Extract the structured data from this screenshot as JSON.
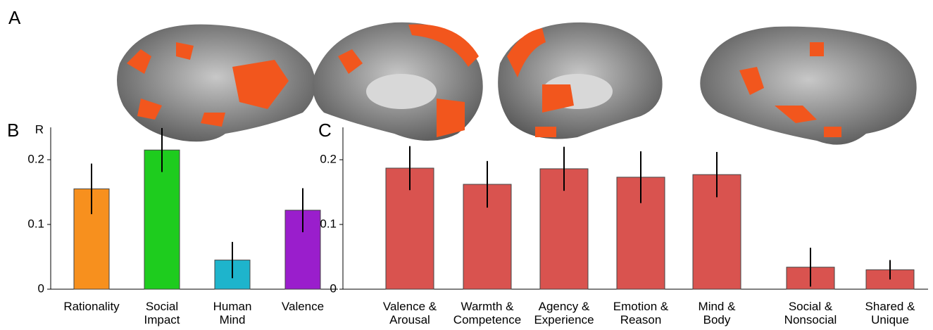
{
  "figure": {
    "panel_label": "A"
  },
  "chart_data": [
    {
      "type": "bar",
      "panel_label": "B",
      "ylabel": "R",
      "categories": [
        "Rationality",
        "Social\nImpact",
        "Human\nMind",
        "Valence"
      ],
      "values": [
        0.155,
        0.215,
        0.045,
        0.122
      ],
      "errors": [
        0.039,
        0.034,
        0.028,
        0.034
      ],
      "colors": [
        "#f7901e",
        "#1ecc1e",
        "#1eb4cc",
        "#9a1ecc"
      ],
      "ylim": [
        0,
        0.25
      ],
      "yticks": [
        0,
        0.1,
        0.2
      ]
    },
    {
      "type": "bar",
      "panel_label": "C",
      "categories": [
        "Valence &\nArousal",
        "Warmth &\nCompetence",
        "Agency &\nExperience",
        "Emotion &\nReason",
        "Mind &\nBody",
        "Social &\nNonsocial",
        "Shared &\nUnique"
      ],
      "values": [
        0.187,
        0.162,
        0.186,
        0.173,
        0.177,
        0.034,
        0.03
      ],
      "errors": [
        0.034,
        0.036,
        0.034,
        0.04,
        0.035,
        0.03,
        0.015
      ],
      "color": "#d9534f",
      "ylim": [
        0,
        0.25
      ],
      "yticks": [
        0,
        0.1,
        0.2
      ]
    }
  ]
}
